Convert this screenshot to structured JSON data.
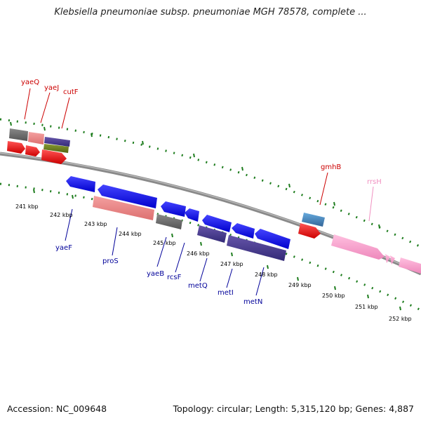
{
  "title": "Klebsiella pneumoniae subsp. pneumoniae MGH 78578, complete ...",
  "footer": {
    "accession": "Accession: NC_009648",
    "summary": "Topology: circular; Length: 5,315,120 bp; Genes: 4,887"
  },
  "axis": {
    "unit": "kbp",
    "tick_labels": [
      "241 kbp",
      "242 kbp",
      "243 kbp",
      "244 kbp",
      "245 kbp",
      "246 kbp",
      "247 kbp",
      "248 kbp",
      "249 kbp",
      "250 kbp",
      "251 kbp",
      "252 kbp"
    ]
  },
  "gene_labels": [
    {
      "name": "yaeQ",
      "color": "#cc0000"
    },
    {
      "name": "yaeJ",
      "color": "#cc0000"
    },
    {
      "name": "cutF",
      "color": "#cc0000"
    },
    {
      "name": "gmhB",
      "color": "#cc0000"
    },
    {
      "name": "rrsH",
      "color": "#f090c0"
    },
    {
      "name": "yaeF",
      "color": "#000099"
    },
    {
      "name": "proS",
      "color": "#000099"
    },
    {
      "name": "yaeB",
      "color": "#000099"
    },
    {
      "name": "rcsF",
      "color": "#000099"
    },
    {
      "name": "metQ",
      "color": "#000099"
    },
    {
      "name": "metI",
      "color": "#000099"
    },
    {
      "name": "metN",
      "color": "#000099"
    }
  ],
  "feature_colors": {
    "cds_forward": "#ee1111",
    "cds_reverse": "#1111ee",
    "gene_grey": "#666666",
    "gene_salmon": "#ee8888",
    "gene_purple": "#443d99",
    "gene_olive": "#667722",
    "gene_steel": "#4488bb",
    "rrna_pink": "#f4a0cc",
    "tick_green": "#1e7d1e"
  }
}
